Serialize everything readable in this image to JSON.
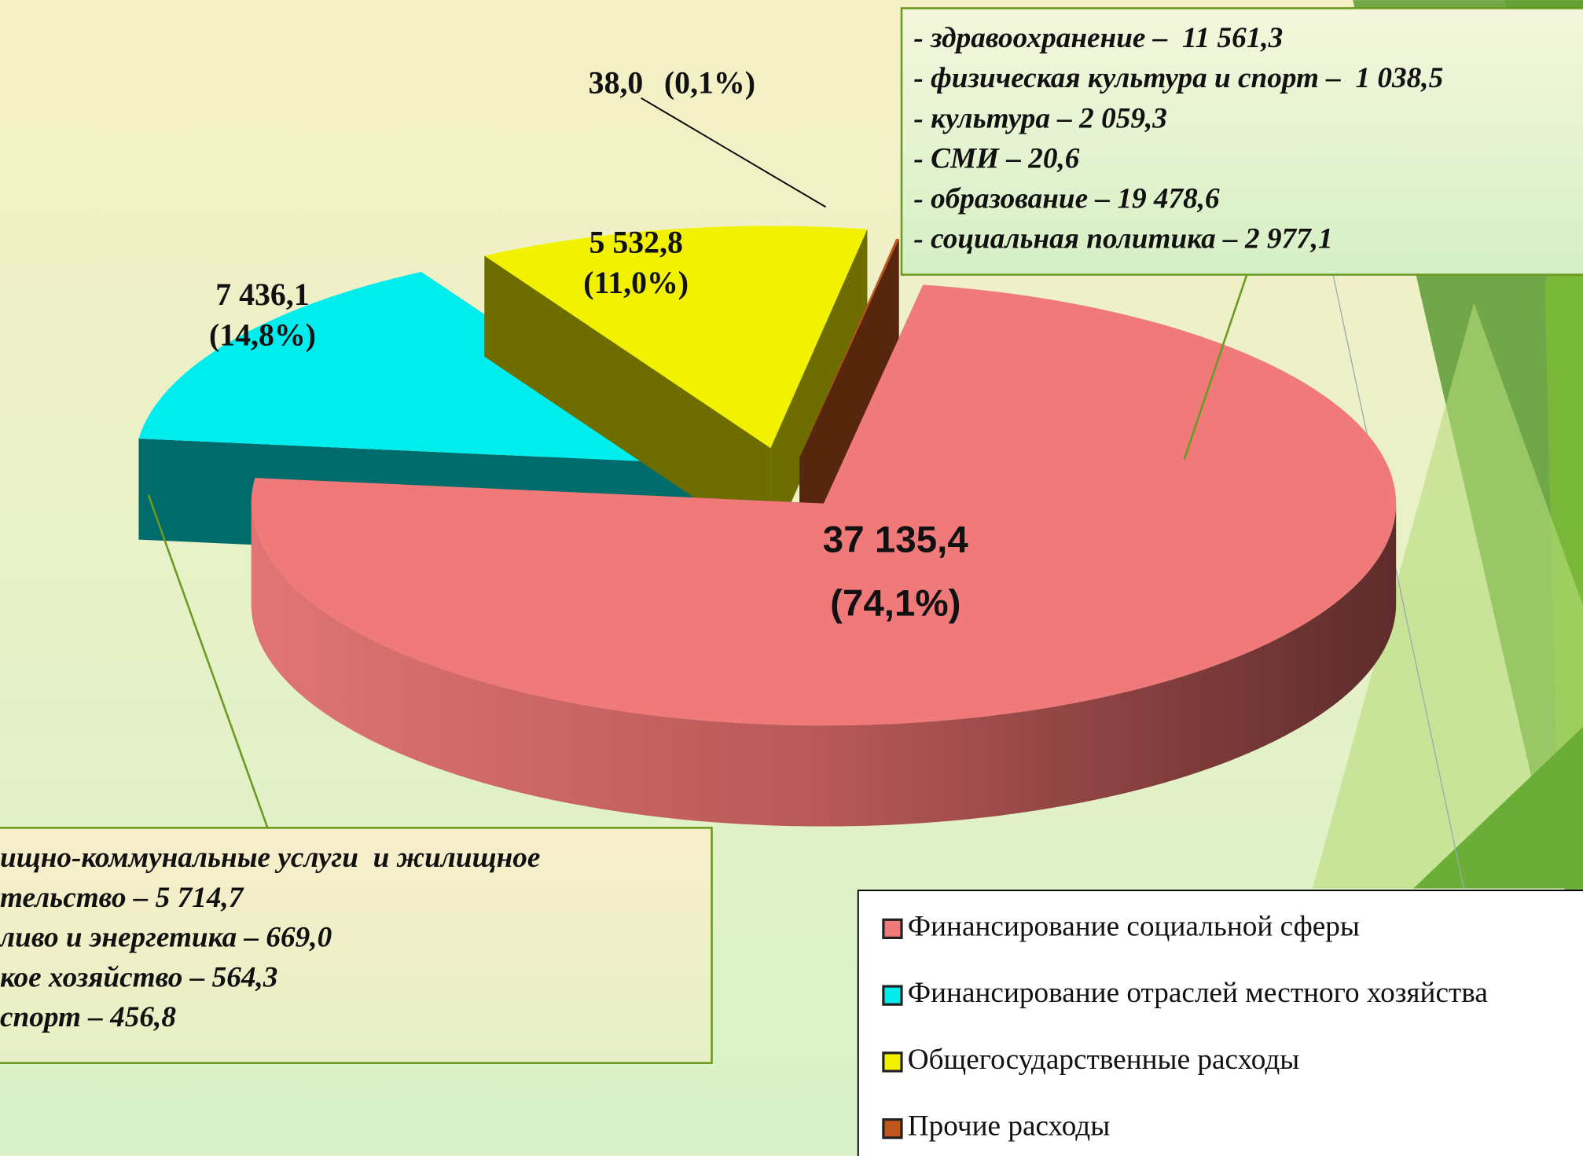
{
  "chart_data": {
    "type": "pie3d",
    "categories": [
      "Финансирование социальной сферы",
      "Финансирование отраслей местного хозяйства",
      "Общегосударственные расходы",
      "Прочие расходы"
    ],
    "values": [
      37135.4,
      7436.1,
      5532.8,
      38.0
    ],
    "value_labels": [
      "37 135,4",
      "7 436,1",
      "5 532,8",
      "38,0"
    ],
    "percents": [
      74.1,
      14.8,
      11.0,
      0.1
    ],
    "percent_labels": [
      "(74,1%)",
      "(14,8%)",
      "(11,0%)",
      "(0,1%)"
    ],
    "colors": [
      "#f07a7a",
      "#00eded",
      "#f2f200",
      "#c0561c"
    ],
    "legend": "bottom-right",
    "annotations": {
      "right": [
        "- здравоохранение –  11 561,3",
        "- физическая культура и спорт –  1 038,5",
        "- культура – 2 059,3",
        "- СМИ – 20,6",
        "- образование – 19 478,6",
        "- социальная политика – 2 977,1"
      ],
      "left": [
        "ищно-коммунальные услуги  и жилищное",
        "тельство – 5 714,7",
        "ливо и энергетика – 669,0",
        "кое хозяйство – 564,3",
        "спорт – 456,8"
      ]
    }
  }
}
